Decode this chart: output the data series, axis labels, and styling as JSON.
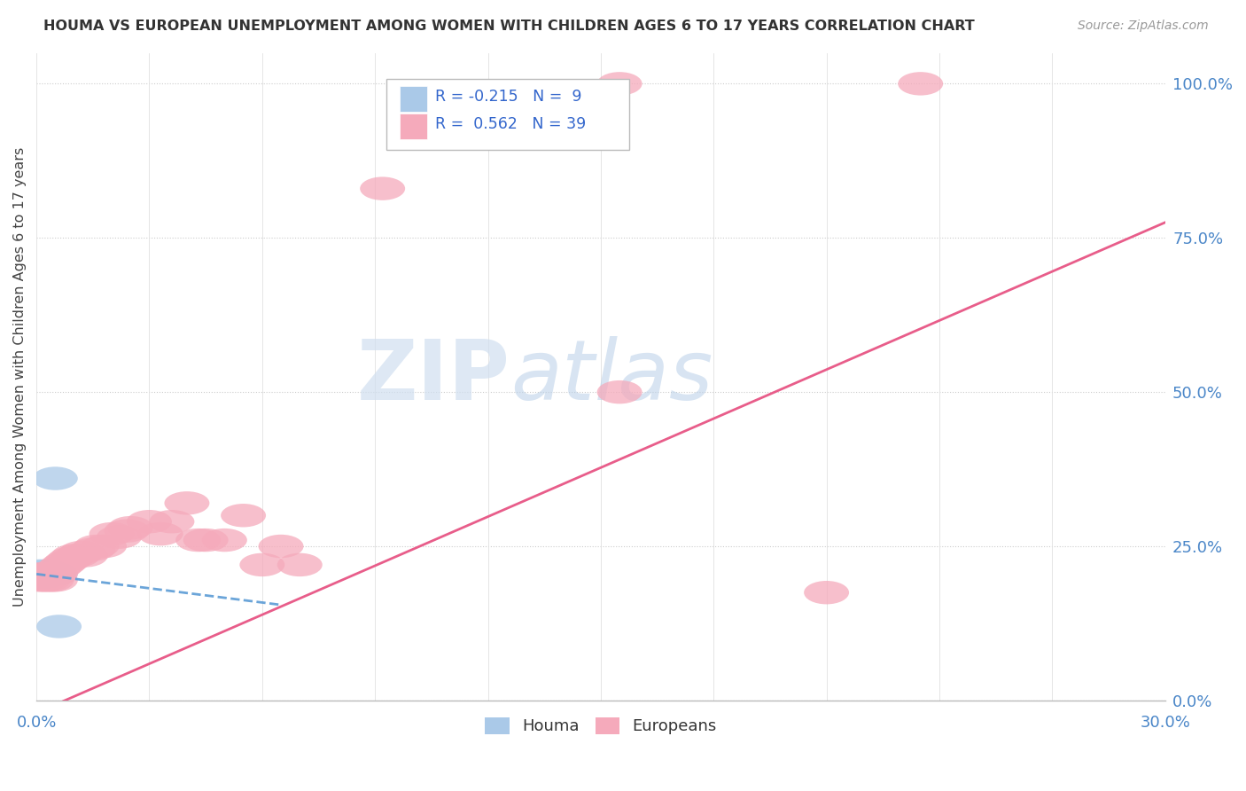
{
  "title": "HOUMA VS EUROPEAN UNEMPLOYMENT AMONG WOMEN WITH CHILDREN AGES 6 TO 17 YEARS CORRELATION CHART",
  "source": "Source: ZipAtlas.com",
  "ylabel": "Unemployment Among Women with Children Ages 6 to 17 years",
  "right_yticks": [
    "100.0%",
    "75.0%",
    "50.0%",
    "25.0%",
    "0.0%"
  ],
  "right_ytick_values": [
    1.0,
    0.75,
    0.5,
    0.25,
    0.0
  ],
  "houma_R": -0.215,
  "houma_N": 9,
  "european_R": 0.562,
  "european_N": 39,
  "houma_color": "#aac9e8",
  "european_color": "#f5aabb",
  "houma_line_color": "#5b9bd5",
  "european_line_color": "#e85d8a",
  "background_color": "#ffffff",
  "watermark_zip": "ZIP",
  "watermark_atlas": "atlas",
  "houma_x": [
    0.001,
    0.001,
    0.002,
    0.003,
    0.003,
    0.004,
    0.005,
    0.005,
    0.006
  ],
  "houma_y": [
    0.205,
    0.21,
    0.2,
    0.205,
    0.21,
    0.205,
    0.36,
    0.205,
    0.12
  ],
  "european_x": [
    0.001,
    0.001,
    0.002,
    0.002,
    0.003,
    0.003,
    0.004,
    0.004,
    0.005,
    0.005,
    0.006,
    0.007,
    0.008,
    0.009,
    0.01,
    0.011,
    0.012,
    0.013,
    0.015,
    0.016,
    0.018,
    0.02,
    0.022,
    0.024,
    0.025,
    0.03,
    0.033,
    0.036,
    0.04,
    0.043,
    0.045,
    0.05,
    0.055,
    0.06,
    0.065,
    0.07,
    0.092,
    0.155,
    0.21
  ],
  "european_y": [
    0.195,
    0.205,
    0.195,
    0.205,
    0.195,
    0.205,
    0.195,
    0.205,
    0.195,
    0.205,
    0.215,
    0.22,
    0.225,
    0.23,
    0.235,
    0.235,
    0.24,
    0.235,
    0.245,
    0.25,
    0.25,
    0.27,
    0.265,
    0.275,
    0.28,
    0.29,
    0.27,
    0.29,
    0.32,
    0.26,
    0.26,
    0.26,
    0.3,
    0.22,
    0.25,
    0.22,
    0.83,
    0.5,
    0.175
  ],
  "houma_trend_x0": 0.0,
  "houma_trend_y0": 0.205,
  "houma_trend_x1": 0.065,
  "houma_trend_y1": 0.155,
  "euro_trend_x0": 0.0,
  "euro_trend_y0": -0.02,
  "euro_trend_x1": 0.3,
  "euro_trend_y1": 0.775,
  "xlim": [
    0.0,
    0.3
  ],
  "ylim": [
    0.0,
    1.05
  ],
  "legend_R1": "R = -0.215",
  "legend_N1": "N =  9",
  "legend_R2": "R =  0.562",
  "legend_N2": "N = 39"
}
